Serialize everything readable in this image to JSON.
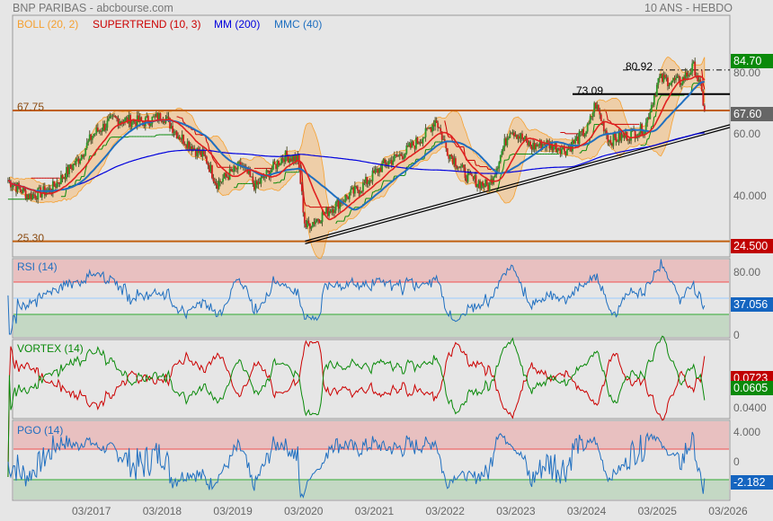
{
  "header": {
    "title": "BNP PARIBAS - abcbourse.com",
    "period": "10 ANS - HEBDO"
  },
  "legend": [
    {
      "label": "BOLL (20, 2)",
      "color": "#f5a030"
    },
    {
      "label": "SUPERTREND (10, 3)",
      "color": "#cc0000"
    },
    {
      "label": "MM (200)",
      "color": "#0000dd"
    },
    {
      "label": "MMC (40)",
      "color": "#1f6fc0"
    }
  ],
  "levels": {
    "resistance": "67.75",
    "support": "25.30",
    "high1": "73.09",
    "high2": "80.92"
  },
  "price_scale": {
    "ticks": [
      "80.00",
      "60.00",
      "40.000"
    ],
    "last": "67.60",
    "last_high": "84.70",
    "last_low": "24.500"
  },
  "rsi": {
    "label": "RSI (14)",
    "ticks": [
      "80.00",
      "0"
    ],
    "value": "37.056"
  },
  "vortex": {
    "label": "VORTEX (14)",
    "tick": "0.0400",
    "vi_minus": "0.0723",
    "vi_plus": "0.0605"
  },
  "pgo": {
    "label": "PGO (14)",
    "ticks": [
      "4.000",
      "0"
    ],
    "value": "-2.182"
  },
  "xaxis": [
    "03/2017",
    "03/2018",
    "03/2019",
    "03/2020",
    "03/2021",
    "03/2022",
    "03/2023",
    "03/2024",
    "03/2025",
    "03/2026"
  ],
  "chart_data": {
    "type": "candlestick",
    "interval": "weekly",
    "title": "BNP PARIBAS",
    "ylim": [
      22,
      88
    ],
    "anchors": [
      [
        2016.0,
        45
      ],
      [
        2016.3,
        40
      ],
      [
        2016.6,
        42
      ],
      [
        2017.0,
        52
      ],
      [
        2017.2,
        60
      ],
      [
        2017.5,
        65
      ],
      [
        2017.9,
        64
      ],
      [
        2018.2,
        66
      ],
      [
        2018.4,
        60
      ],
      [
        2018.8,
        52
      ],
      [
        2018.95,
        44
      ],
      [
        2019.3,
        50
      ],
      [
        2019.5,
        43
      ],
      [
        2019.9,
        53
      ],
      [
        2020.1,
        52
      ],
      [
        2020.2,
        30
      ],
      [
        2020.4,
        33
      ],
      [
        2020.8,
        40
      ],
      [
        2021.0,
        43
      ],
      [
        2021.3,
        50
      ],
      [
        2021.6,
        54
      ],
      [
        2021.9,
        60
      ],
      [
        2022.05,
        65
      ],
      [
        2022.2,
        55
      ],
      [
        2022.5,
        46
      ],
      [
        2022.8,
        43
      ],
      [
        2023.1,
        62
      ],
      [
        2023.4,
        56
      ],
      [
        2023.6,
        57
      ],
      [
        2023.9,
        55
      ],
      [
        2024.2,
        62
      ],
      [
        2024.3,
        70
      ],
      [
        2024.5,
        58
      ],
      [
        2024.8,
        60
      ],
      [
        2025.0,
        62
      ],
      [
        2025.2,
        78
      ],
      [
        2025.5,
        77
      ],
      [
        2025.7,
        82
      ],
      [
        2025.8,
        74
      ],
      [
        2025.85,
        67.6
      ]
    ],
    "trendline": [
      [
        2020.2,
        24.5
      ],
      [
        2025.9,
        60.5
      ]
    ]
  }
}
